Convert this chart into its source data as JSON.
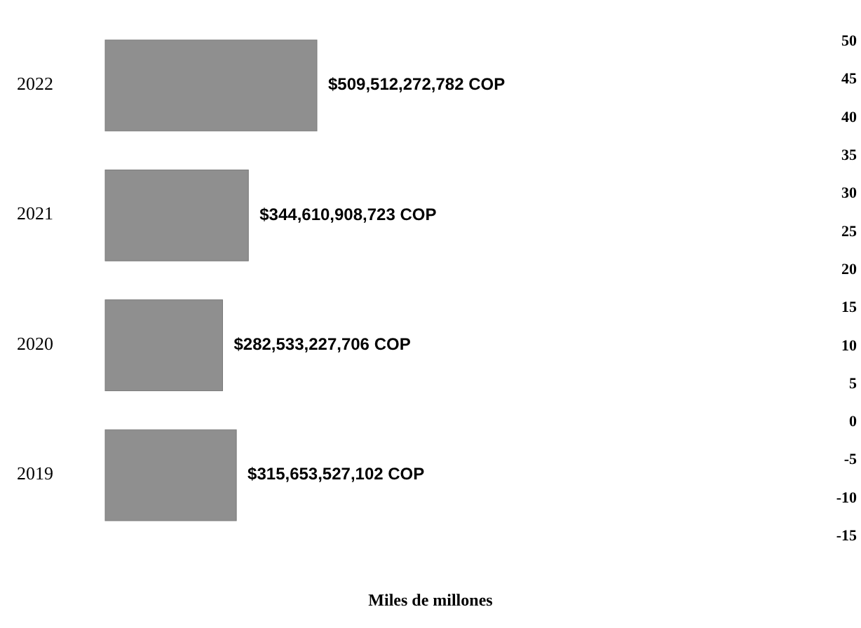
{
  "chart_data": {
    "type": "bar",
    "orientation": "horizontal",
    "xlabel": "Miles de millones",
    "categories": [
      "2022",
      "2021",
      "2020",
      "2019"
    ],
    "series": [
      {
        "color": "#8f8f8f",
        "values": [
          509512272782,
          344610908723,
          282533227706,
          315653527102
        ],
        "value_labels": [
          "$509,512,272,782 COP",
          "$344,610,908,723 COP",
          "$282,533,227,706 COP",
          "$315,653,527,102 COP"
        ]
      }
    ],
    "y2lim": [
      -15,
      50
    ],
    "y2ticks": [
      -15,
      -10,
      -5,
      0,
      5,
      10,
      15,
      20,
      25,
      30,
      35,
      40,
      45,
      50
    ]
  }
}
